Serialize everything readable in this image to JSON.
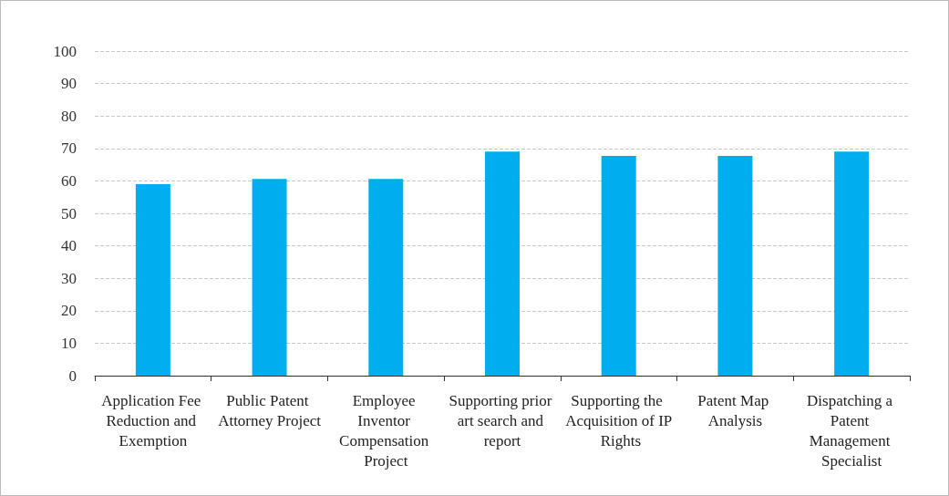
{
  "chart_data": {
    "type": "bar",
    "categories": [
      "Application Fee Reduction and Exemption",
      "Public Patent Attorney Project",
      "Employee Inventor Compensation Project",
      "Supporting prior art search and report",
      "Supporting the Acquisition of IP Rights",
      "Patent Map Analysis",
      "Dispatching a Patent Management Specialist"
    ],
    "values": [
      59,
      60.6,
      60.6,
      69,
      67.7,
      67.7,
      69
    ],
    "color": "#00aeef",
    "ylim": [
      0,
      100
    ],
    "yticks": [
      0,
      10,
      20,
      30,
      40,
      50,
      60,
      70,
      80,
      90,
      100
    ],
    "grid": "y",
    "line_style": "dashed"
  }
}
